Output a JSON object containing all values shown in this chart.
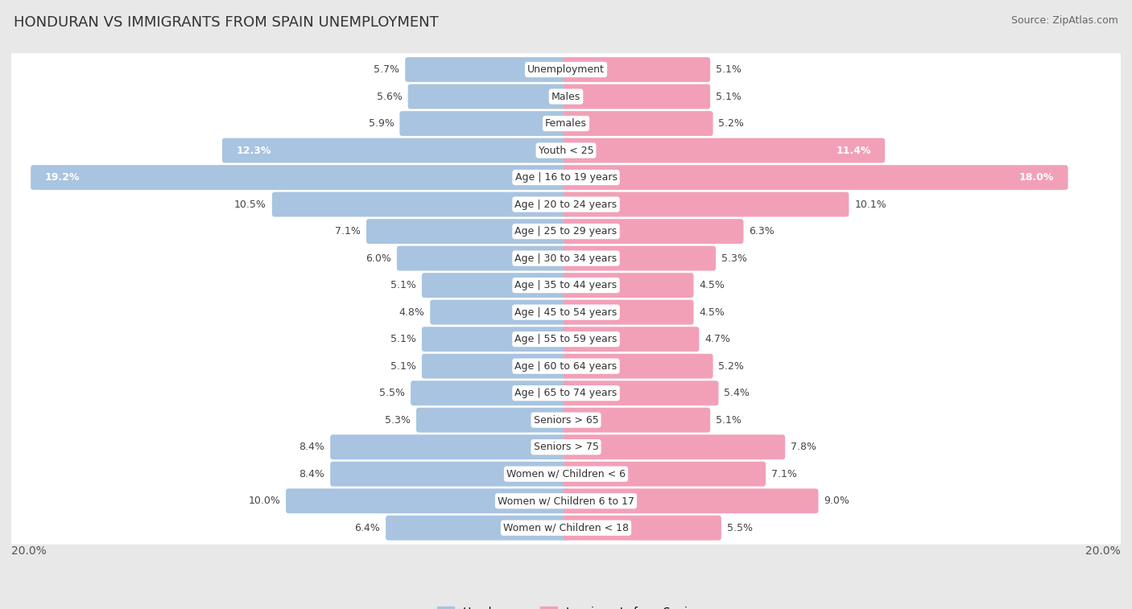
{
  "title": "HONDURAN VS IMMIGRANTS FROM SPAIN UNEMPLOYMENT",
  "source": "Source: ZipAtlas.com",
  "categories": [
    "Unemployment",
    "Males",
    "Females",
    "Youth < 25",
    "Age | 16 to 19 years",
    "Age | 20 to 24 years",
    "Age | 25 to 29 years",
    "Age | 30 to 34 years",
    "Age | 35 to 44 years",
    "Age | 45 to 54 years",
    "Age | 55 to 59 years",
    "Age | 60 to 64 years",
    "Age | 65 to 74 years",
    "Seniors > 65",
    "Seniors > 75",
    "Women w/ Children < 6",
    "Women w/ Children 6 to 17",
    "Women w/ Children < 18"
  ],
  "honduran": [
    5.7,
    5.6,
    5.9,
    12.3,
    19.2,
    10.5,
    7.1,
    6.0,
    5.1,
    4.8,
    5.1,
    5.1,
    5.5,
    5.3,
    8.4,
    8.4,
    10.0,
    6.4
  ],
  "spain": [
    5.1,
    5.1,
    5.2,
    11.4,
    18.0,
    10.1,
    6.3,
    5.3,
    4.5,
    4.5,
    4.7,
    5.2,
    5.4,
    5.1,
    7.8,
    7.1,
    9.0,
    5.5
  ],
  "max_val": 20.0,
  "blue_color": "#a8c4e0",
  "pink_color": "#f2a0b8",
  "bg_color": "#e8e8e8",
  "row_bg": "#f5f5f5",
  "label_fontsize": 9.0,
  "value_fontsize": 9.0,
  "title_fontsize": 13,
  "source_fontsize": 9,
  "legend_fontsize": 10
}
